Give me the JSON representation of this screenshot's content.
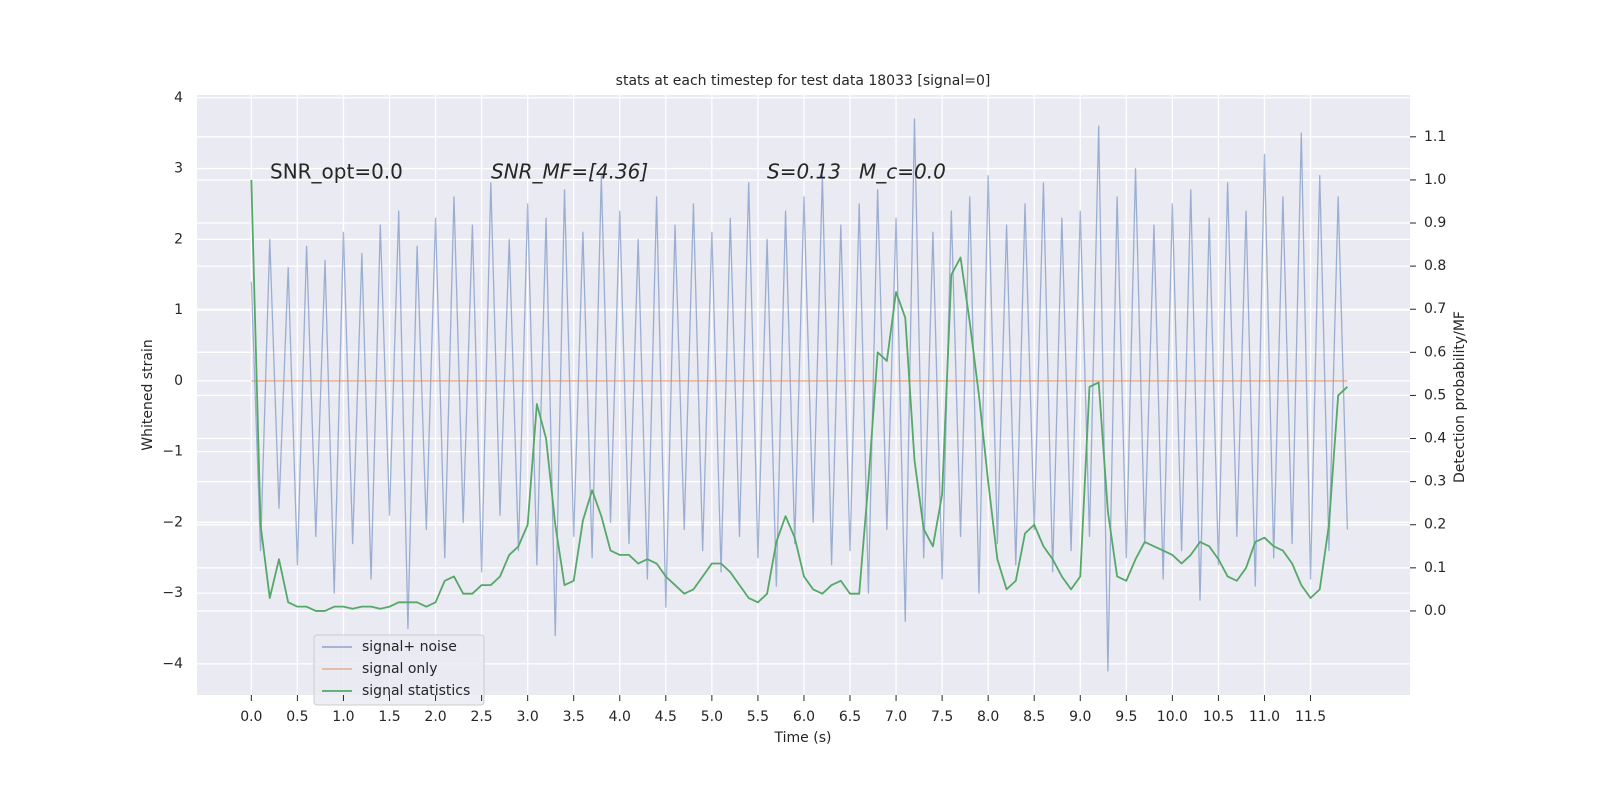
{
  "chart_data": {
    "type": "line",
    "title": "stats at each timestep for test data 18033 [signal=0]",
    "xlabel": "Time (s)",
    "ylabel": "Whitened strain",
    "y2label": "Detection probability/MF",
    "annotations": [
      "SNR_opt=0.0",
      "SNR_MF=[4.36]",
      "S=0.13",
      "M_c=0.0"
    ],
    "legend": "lower left",
    "grid": true,
    "xlim": [
      -0.59,
      12.58
    ],
    "ylim": [
      -4.44,
      4.04
    ],
    "y2lim": [
      -0.195,
      1.197
    ],
    "xticks": [
      {
        "value": 0,
        "label": "0.0"
      },
      0.5,
      {
        "value": 1,
        "label": "1.0"
      },
      1.5,
      {
        "value": 2,
        "label": "2.0"
      },
      2.5,
      {
        "value": 3,
        "label": "3.0"
      },
      3.5,
      {
        "value": 4,
        "label": "4.0"
      },
      4.5,
      {
        "value": 5,
        "label": "5.0"
      },
      5.5,
      {
        "value": 6,
        "label": "6.0"
      },
      6.5,
      {
        "value": 7,
        "label": "7.0"
      },
      7.5,
      {
        "value": 8,
        "label": "8.0"
      },
      8.5,
      {
        "value": 9,
        "label": "9.0"
      },
      9.5,
      {
        "value": 10,
        "label": "10.0"
      },
      10.5,
      {
        "value": 11,
        "label": "11.0"
      },
      11.5
    ],
    "yticks": [
      {
        "value": -4,
        "label": "−4"
      },
      {
        "value": -3,
        "label": "−3"
      },
      {
        "value": -2,
        "label": "−2"
      },
      {
        "value": -1,
        "label": "−1"
      },
      0,
      1,
      2,
      3,
      4
    ],
    "y2ticks": [
      {
        "value": 0,
        "label": "0.0"
      },
      0.1,
      0.2,
      0.3,
      0.4,
      0.5,
      0.6,
      0.7,
      0.8,
      0.9,
      {
        "value": 1,
        "label": "1.0"
      },
      1.1
    ],
    "x": [
      0.0,
      0.1,
      0.2,
      0.3,
      0.4,
      0.5,
      0.6,
      0.7,
      0.8,
      0.9,
      1.0,
      1.1,
      1.2,
      1.3,
      1.4,
      1.5,
      1.6,
      1.7,
      1.8,
      1.9,
      2.0,
      2.1,
      2.2,
      2.3,
      2.4,
      2.5,
      2.6,
      2.7,
      2.8,
      2.9,
      3.0,
      3.1,
      3.2,
      3.3,
      3.4,
      3.5,
      3.6,
      3.7,
      3.8,
      3.9,
      4.0,
      4.1,
      4.2,
      4.3,
      4.4,
      4.5,
      4.6,
      4.7,
      4.8,
      4.9,
      5.0,
      5.1,
      5.2,
      5.3,
      5.4,
      5.5,
      5.6,
      5.7,
      5.8,
      5.9,
      6.0,
      6.1,
      6.2,
      6.3,
      6.4,
      6.5,
      6.6,
      6.7,
      6.8,
      6.9,
      7.0,
      7.1,
      7.2,
      7.3,
      7.4,
      7.5,
      7.6,
      7.7,
      7.8,
      7.9,
      8.0,
      8.1,
      8.2,
      8.3,
      8.4,
      8.5,
      8.6,
      8.7,
      8.8,
      8.9,
      9.0,
      9.1,
      9.2,
      9.3,
      9.4,
      9.5,
      9.6,
      9.7,
      9.8,
      9.9,
      10.0,
      10.1,
      10.2,
      10.3,
      10.4,
      10.5,
      10.6,
      10.7,
      10.8,
      10.9,
      11.0,
      11.1,
      11.2,
      11.3,
      11.4,
      11.5,
      11.6,
      11.7,
      11.8,
      11.9
    ],
    "series": [
      {
        "name": "signal+ noise",
        "color": "#4c72b0",
        "axis": "y",
        "values": [
          1.4,
          -2.4,
          2.0,
          -1.8,
          1.6,
          -2.6,
          1.9,
          -2.2,
          1.7,
          -3.0,
          2.1,
          -2.3,
          1.8,
          -2.8,
          2.2,
          -1.9,
          2.4,
          -3.5,
          1.9,
          -2.1,
          2.3,
          -2.5,
          2.6,
          -2.0,
          2.2,
          -2.7,
          2.8,
          -1.9,
          2.0,
          -2.4,
          2.5,
          -2.6,
          2.3,
          -3.6,
          2.7,
          -2.2,
          2.1,
          -2.5,
          2.9,
          -2.0,
          2.4,
          -2.3,
          2.0,
          -2.8,
          2.6,
          -3.2,
          2.2,
          -2.1,
          2.5,
          -2.4,
          2.1,
          -2.7,
          2.3,
          -2.2,
          2.8,
          -2.5,
          2.0,
          -2.9,
          2.4,
          -2.3,
          2.6,
          -2.0,
          2.9,
          -2.6,
          2.2,
          -2.4,
          2.5,
          -3.0,
          2.7,
          -2.1,
          2.3,
          -3.4,
          3.7,
          -2.5,
          2.1,
          -2.8,
          2.4,
          -2.2,
          2.6,
          -3.0,
          2.9,
          -2.3,
          2.2,
          -2.6,
          2.5,
          -2.1,
          2.8,
          -2.7,
          2.3,
          -2.4,
          2.4,
          -2.2,
          3.6,
          -4.1,
          2.6,
          -2.5,
          3.0,
          -2.3,
          2.2,
          -2.8,
          2.5,
          -2.4,
          2.7,
          -3.1,
          2.3,
          -2.6,
          2.8,
          -2.2,
          2.4,
          -2.9,
          3.2,
          -2.5,
          2.6,
          -2.3,
          3.5,
          -2.8,
          2.9,
          -2.4,
          2.6,
          -2.1
        ]
      },
      {
        "name": "signal only",
        "color": "#dd8452",
        "axis": "y",
        "values": [
          0,
          0,
          0,
          0,
          0,
          0,
          0,
          0,
          0,
          0,
          0,
          0,
          0,
          0,
          0,
          0,
          0,
          0,
          0,
          0,
          0,
          0,
          0,
          0,
          0,
          0,
          0,
          0,
          0,
          0,
          0,
          0,
          0,
          0,
          0,
          0,
          0,
          0,
          0,
          0,
          0,
          0,
          0,
          0,
          0,
          0,
          0,
          0,
          0,
          0,
          0,
          0,
          0,
          0,
          0,
          0,
          0,
          0,
          0,
          0,
          0,
          0,
          0,
          0,
          0,
          0,
          0,
          0,
          0,
          0,
          0,
          0,
          0,
          0,
          0,
          0,
          0,
          0,
          0,
          0,
          0,
          0,
          0,
          0,
          0,
          0,
          0,
          0,
          0,
          0,
          0,
          0,
          0,
          0,
          0,
          0,
          0,
          0,
          0,
          0,
          0,
          0,
          0,
          0,
          0,
          0,
          0,
          0,
          0,
          0,
          0,
          0,
          0,
          0,
          0,
          0,
          0,
          0,
          0,
          0
        ]
      },
      {
        "name": "signal statistics",
        "color": "#55a868",
        "axis": "y2",
        "values": [
          1.0,
          0.2,
          0.03,
          0.12,
          0.02,
          0.01,
          0.01,
          0.0,
          0.0,
          0.01,
          0.01,
          0.005,
          0.01,
          0.01,
          0.005,
          0.01,
          0.02,
          0.02,
          0.02,
          0.01,
          0.02,
          0.07,
          0.08,
          0.04,
          0.04,
          0.06,
          0.06,
          0.08,
          0.13,
          0.15,
          0.2,
          0.48,
          0.4,
          0.2,
          0.06,
          0.07,
          0.21,
          0.28,
          0.22,
          0.14,
          0.13,
          0.13,
          0.11,
          0.12,
          0.11,
          0.08,
          0.06,
          0.04,
          0.05,
          0.08,
          0.11,
          0.11,
          0.09,
          0.06,
          0.03,
          0.02,
          0.04,
          0.16,
          0.22,
          0.17,
          0.08,
          0.05,
          0.04,
          0.06,
          0.07,
          0.04,
          0.04,
          0.3,
          0.6,
          0.58,
          0.74,
          0.68,
          0.35,
          0.19,
          0.15,
          0.27,
          0.78,
          0.82,
          0.67,
          0.5,
          0.3,
          0.12,
          0.05,
          0.07,
          0.18,
          0.2,
          0.15,
          0.12,
          0.08,
          0.05,
          0.08,
          0.52,
          0.53,
          0.23,
          0.08,
          0.07,
          0.12,
          0.16,
          0.15,
          0.14,
          0.13,
          0.11,
          0.13,
          0.16,
          0.15,
          0.12,
          0.08,
          0.07,
          0.1,
          0.16,
          0.17,
          0.15,
          0.14,
          0.11,
          0.06,
          0.03,
          0.05,
          0.2,
          0.5,
          0.52
        ]
      }
    ]
  }
}
